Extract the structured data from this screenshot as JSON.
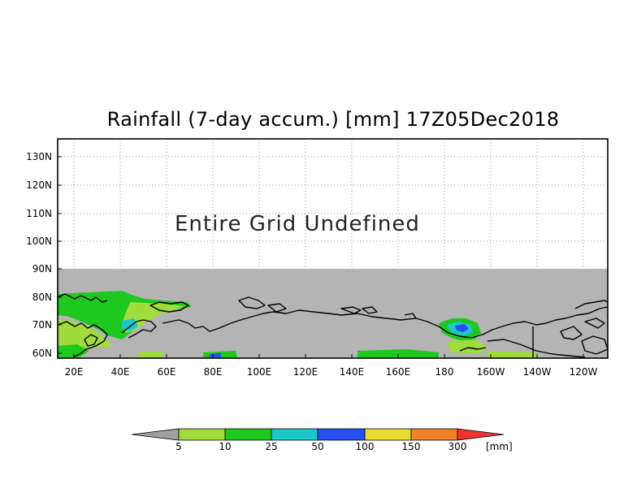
{
  "title": "Rainfall (7-day accum.) [mm] 17Z05Dec2018",
  "undefined_note": "Entire Grid Undefined",
  "lat_labels": [
    "130N",
    "120N",
    "110N",
    "100N",
    "90N",
    "80N",
    "70N",
    "60N"
  ],
  "lon_labels": [
    "20E",
    "40E",
    "60E",
    "80E",
    "100E",
    "120E",
    "140E",
    "160E",
    "180",
    "160W",
    "140W",
    "120W"
  ],
  "legend": {
    "unit": "[mm]",
    "labels": [
      "5",
      "10",
      "25",
      "50",
      "100",
      "150",
      "300"
    ],
    "colors": {
      "below": "#a0a0a0",
      "b1": "#a0dc3c",
      "b2": "#1ec81e",
      "b3": "#1ec8c8",
      "b4": "#2850f0",
      "b5": "#e6dc32",
      "b6": "#f08228",
      "above": "#f03232"
    }
  },
  "colors": {
    "ocean_nodata": "#b4b4b4",
    "coast": "#000000",
    "frame": "#000000",
    "grid": "#999999"
  }
}
